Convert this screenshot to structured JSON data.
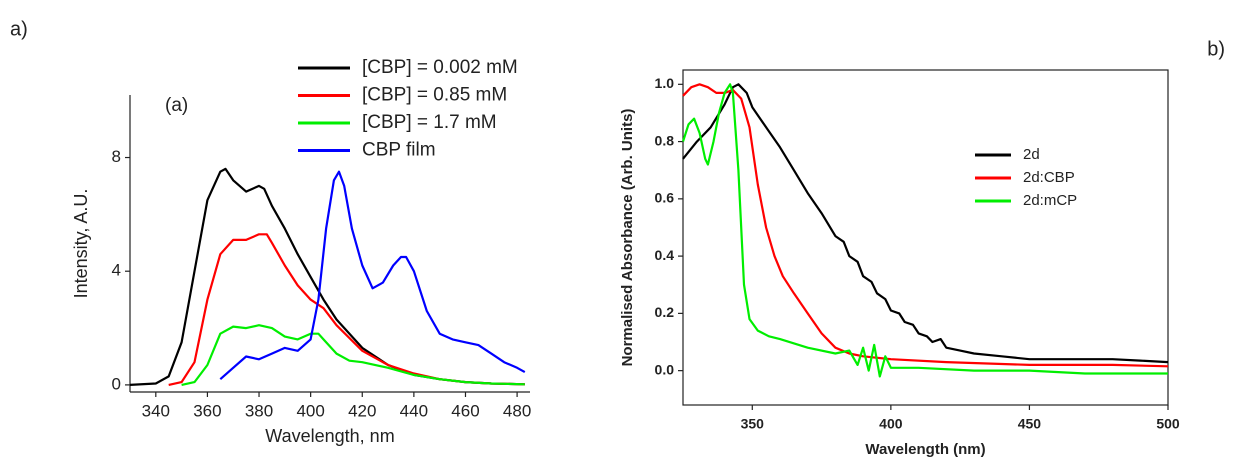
{
  "chart_data": [
    {
      "type": "line",
      "panel_label": "a)",
      "annotation": "(a)",
      "x_label": "Wavelength, nm",
      "y_label": "Intensity, A.U.",
      "xlim": [
        330,
        485
      ],
      "ylim": [
        -0.25,
        10.2
      ],
      "xticks": [
        340,
        360,
        380,
        400,
        420,
        440,
        460,
        480
      ],
      "yticks": [
        0,
        4,
        8
      ],
      "legend": "top right",
      "grid": false,
      "series": [
        {
          "name": "[CBP] = 0.002 mM",
          "color": "#000000",
          "x": [
            330,
            340,
            345,
            350,
            355,
            360,
            365,
            367,
            370,
            375,
            380,
            382,
            385,
            390,
            395,
            400,
            405,
            410,
            420,
            430,
            440,
            450,
            460,
            470,
            483
          ],
          "values": [
            0,
            0.05,
            0.3,
            1.5,
            4,
            6.5,
            7.5,
            7.6,
            7.2,
            6.8,
            7.0,
            6.9,
            6.3,
            5.5,
            4.6,
            3.8,
            3.0,
            2.3,
            1.3,
            0.7,
            0.35,
            0.2,
            0.1,
            0.05,
            0.02
          ]
        },
        {
          "name": "[CBP] = 0.85 mM",
          "color": "#ff0000",
          "x": [
            345,
            350,
            355,
            360,
            365,
            370,
            375,
            380,
            383,
            385,
            390,
            395,
            400,
            405,
            410,
            420,
            430,
            440,
            450,
            460,
            470,
            483
          ],
          "values": [
            0,
            0.1,
            0.8,
            3,
            4.6,
            5.1,
            5.1,
            5.3,
            5.3,
            5.0,
            4.2,
            3.5,
            3.0,
            2.7,
            2.1,
            1.2,
            0.7,
            0.4,
            0.2,
            0.1,
            0.05,
            0.02
          ]
        },
        {
          "name": "[CBP] = 1.7 mM",
          "color": "#00ee00",
          "x": [
            350,
            355,
            360,
            365,
            370,
            375,
            380,
            385,
            390,
            395,
            400,
            403,
            405,
            410,
            415,
            420,
            430,
            440,
            450,
            460,
            470,
            483
          ],
          "values": [
            0,
            0.1,
            0.7,
            1.8,
            2.05,
            2.0,
            2.1,
            2.0,
            1.7,
            1.6,
            1.8,
            1.8,
            1.6,
            1.1,
            0.85,
            0.8,
            0.6,
            0.35,
            0.2,
            0.1,
            0.05,
            0.02
          ]
        },
        {
          "name": "CBP film",
          "color": "#0000ff",
          "x": [
            365,
            370,
            375,
            380,
            385,
            390,
            395,
            400,
            403,
            406,
            409,
            411,
            413,
            416,
            420,
            424,
            428,
            432,
            435,
            437,
            440,
            445,
            450,
            455,
            460,
            465,
            470,
            475,
            480,
            483
          ],
          "values": [
            0.2,
            0.6,
            1.0,
            0.9,
            1.1,
            1.3,
            1.2,
            1.6,
            3.0,
            5.5,
            7.2,
            7.5,
            7.0,
            5.5,
            4.2,
            3.4,
            3.6,
            4.2,
            4.5,
            4.5,
            4.0,
            2.6,
            1.8,
            1.6,
            1.5,
            1.4,
            1.1,
            0.8,
            0.6,
            0.45
          ]
        }
      ]
    },
    {
      "type": "line",
      "panel_label": "b)",
      "x_label": "Wavelength (nm)",
      "y_label": "Normalised Absorbance (Arb. Units)",
      "xlim": [
        325,
        500
      ],
      "ylim": [
        -0.12,
        1.05
      ],
      "xticks": [
        350,
        400,
        450,
        500
      ],
      "yticks": [
        {
          "value": 0,
          "label": "0.0"
        },
        0.2,
        0.4,
        0.6,
        0.8,
        {
          "value": 1,
          "label": "1.0"
        }
      ],
      "legend": "right",
      "grid": false,
      "series": [
        {
          "name": "2d",
          "color": "#000000",
          "x": [
            325,
            330,
            335,
            340,
            343,
            345,
            348,
            350,
            355,
            360,
            365,
            370,
            375,
            380,
            383,
            385,
            388,
            390,
            393,
            395,
            398,
            400,
            403,
            405,
            408,
            410,
            413,
            415,
            418,
            420,
            425,
            430,
            440,
            450,
            460,
            470,
            480,
            490,
            500
          ],
          "values": [
            0.74,
            0.8,
            0.85,
            0.93,
            0.99,
            1.0,
            0.97,
            0.92,
            0.85,
            0.78,
            0.7,
            0.62,
            0.55,
            0.47,
            0.45,
            0.4,
            0.38,
            0.33,
            0.31,
            0.27,
            0.25,
            0.21,
            0.2,
            0.17,
            0.16,
            0.13,
            0.12,
            0.1,
            0.11,
            0.08,
            0.07,
            0.06,
            0.05,
            0.04,
            0.04,
            0.04,
            0.04,
            0.035,
            0.03
          ]
        },
        {
          "name": "2d:CBP",
          "color": "#ff0000",
          "x": [
            325,
            328,
            331,
            334,
            337,
            340,
            343,
            346,
            349,
            352,
            355,
            358,
            361,
            365,
            370,
            375,
            380,
            385,
            390,
            400,
            420,
            450,
            480,
            500
          ],
          "values": [
            0.96,
            0.99,
            1.0,
            0.99,
            0.97,
            0.97,
            0.98,
            0.95,
            0.85,
            0.65,
            0.5,
            0.4,
            0.33,
            0.27,
            0.2,
            0.13,
            0.08,
            0.06,
            0.05,
            0.04,
            0.03,
            0.02,
            0.02,
            0.015
          ]
        },
        {
          "name": "2d:mCP",
          "color": "#00ee00",
          "x": [
            325,
            327,
            329,
            331,
            333,
            334,
            336,
            338,
            340,
            342,
            343,
            345,
            347,
            349,
            352,
            356,
            360,
            370,
            380,
            385,
            388,
            390,
            392,
            394,
            396,
            398,
            400,
            410,
            430,
            450,
            470,
            500
          ],
          "values": [
            0.8,
            0.86,
            0.88,
            0.83,
            0.74,
            0.72,
            0.8,
            0.9,
            0.97,
            1.0,
            0.97,
            0.7,
            0.3,
            0.18,
            0.14,
            0.12,
            0.11,
            0.08,
            0.06,
            0.07,
            0.02,
            0.08,
            0.0,
            0.09,
            -0.02,
            0.05,
            0.01,
            0.01,
            0.0,
            0.0,
            -0.01,
            -0.01
          ]
        }
      ]
    }
  ]
}
